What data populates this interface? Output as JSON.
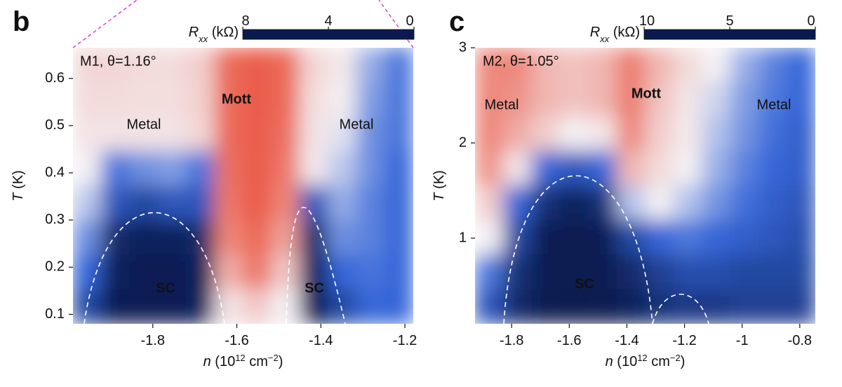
{
  "chart_data": [
    {
      "type": "heatmap",
      "panel": "b",
      "annotations": [
        "M1, θ=1.16°",
        "Metal",
        "Mott",
        "Metal",
        "SC",
        "SC"
      ],
      "xlabel": [
        "n",
        " (10",
        "12",
        " cm",
        "−2",
        ")"
      ],
      "ylabel": [
        "T",
        " (K)"
      ],
      "colorbar_label": [
        "R",
        "xx",
        " (kΩ)"
      ],
      "xlim": [
        -1.99,
        -1.18
      ],
      "xticks": [
        -1.8,
        -1.6,
        -1.4,
        -1.2
      ],
      "ylim": [
        0.08,
        0.665
      ],
      "yticks": [
        0.1,
        0.2,
        0.3,
        0.4,
        0.5,
        0.6
      ],
      "clim": [
        8,
        0
      ],
      "cticks": [
        8,
        4,
        0
      ],
      "colorscale": [
        [
          0,
          "#0b1a4e"
        ],
        [
          0.5,
          "#3566d8"
        ],
        [
          1.5,
          "#f4f1f4"
        ],
        [
          8,
          "#e8412b"
        ]
      ],
      "z": [
        [
          2.5,
          2.5,
          2.3,
          2.3,
          2.8,
          6.5,
          7,
          6.5,
          2.5,
          1.8,
          1.0,
          0.6
        ],
        [
          2.3,
          2.3,
          2.2,
          2.2,
          2.7,
          6.5,
          7,
          6.5,
          2.2,
          1.6,
          0.9,
          0.6
        ],
        [
          2.0,
          2.0,
          2.0,
          2.0,
          2.5,
          6.5,
          7,
          6.3,
          2.0,
          1.4,
          0.8,
          0.6
        ],
        [
          1.5,
          0.6,
          0.8,
          0.9,
          0.6,
          6.3,
          7,
          6,
          1.8,
          1.2,
          0.8,
          0.5
        ],
        [
          1.2,
          0.4,
          0.3,
          0.4,
          0.4,
          6,
          7,
          5.5,
          0.4,
          1.0,
          0.7,
          0.5
        ],
        [
          0.8,
          0.1,
          0.05,
          0.05,
          0.1,
          5.5,
          6.5,
          4.5,
          0.1,
          0.8,
          0.7,
          0.5
        ],
        [
          0.5,
          0.05,
          0.02,
          0.02,
          0.05,
          4,
          6,
          3,
          0.05,
          0.5,
          0.6,
          0.5
        ],
        [
          0.3,
          0.02,
          0.02,
          0.02,
          0.05,
          2,
          3,
          1.5,
          0.03,
          0.3,
          0.5,
          0.5
        ]
      ]
    },
    {
      "type": "heatmap",
      "panel": "c",
      "annotations": [
        "M2, θ=1.05°",
        "Metal",
        "Mott",
        "Metal",
        "SC"
      ],
      "xlabel": [
        "n",
        " (10",
        "12",
        " cm",
        "−2",
        ")"
      ],
      "ylabel": [
        "T",
        " (K)"
      ],
      "colorbar_label": [
        "R",
        "xx",
        " (kΩ)"
      ],
      "xlim": [
        -1.927,
        -0.746
      ],
      "xticks": [
        -1.8,
        -1.6,
        -1.4,
        -1.2,
        -1,
        -0.8
      ],
      "ylim": [
        0.1,
        3
      ],
      "yticks": [
        1,
        2,
        3
      ],
      "clim": [
        10,
        0
      ],
      "cticks": [
        10,
        5,
        0
      ],
      "colorscale": [
        [
          0,
          "#0b1a4e"
        ],
        [
          1,
          "#3566d8"
        ],
        [
          2.5,
          "#f4f1f4"
        ],
        [
          10,
          "#e8412b"
        ]
      ],
      "z": [
        [
          7,
          7,
          5,
          4.5,
          5,
          7.5,
          5,
          3.5,
          2.5,
          1.8,
          1.3,
          1.0
        ],
        [
          7,
          6.5,
          5,
          4.5,
          5,
          7.5,
          4.5,
          3,
          2.2,
          1.6,
          1.2,
          1.0
        ],
        [
          7,
          5.5,
          4,
          2.5,
          3,
          7,
          4,
          2.8,
          2,
          1.5,
          1.1,
          0.9
        ],
        [
          6.5,
          3,
          1,
          0.8,
          1,
          5,
          3.5,
          2.5,
          1.8,
          1.3,
          1,
          0.9
        ],
        [
          4,
          1,
          0.3,
          0.1,
          0.3,
          2,
          2.5,
          2,
          1.5,
          1.1,
          0.9,
          0.8
        ],
        [
          2.5,
          0.6,
          0.05,
          0.02,
          0.05,
          0.6,
          1,
          1.2,
          1,
          0.9,
          0.8,
          0.7
        ],
        [
          1.2,
          0.3,
          0.02,
          0.02,
          0.02,
          0.2,
          0.5,
          0.7,
          0.7,
          0.6,
          0.6,
          0.6
        ],
        [
          0.8,
          0.2,
          0.02,
          0.01,
          0.02,
          0.1,
          0.3,
          0.4,
          0.4,
          0.5,
          0.5,
          0.5
        ]
      ]
    }
  ]
}
